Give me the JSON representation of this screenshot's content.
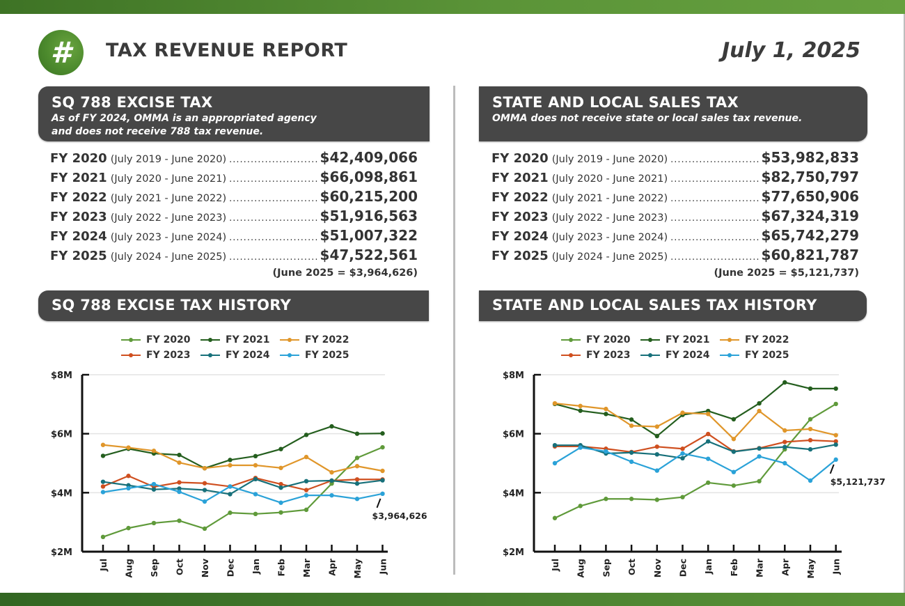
{
  "header": {
    "logo_glyph": "#",
    "logo_icon": "hash-icon",
    "title": "TAX REVENUE REPORT",
    "date": "July 1, 2025"
  },
  "colors": {
    "brand_green": "#4c8a2d",
    "header_box": "#474747",
    "series": {
      "FY 2020": "#5f9a3a",
      "FY 2021": "#245e1e",
      "FY 2022": "#e0962a",
      "FY 2023": "#cf4f1f",
      "FY 2024": "#17707a",
      "FY 2025": "#2aa2d8"
    }
  },
  "excise": {
    "title": "SQ 788 EXCISE TAX",
    "subtitle_line1": "As of FY 2024, OMMA is an appropriated agency",
    "subtitle_line2": "and does not receive 788 tax revenue.",
    "rows": [
      {
        "fy": "FY 2020",
        "period": "(July 2019 - June 2020)",
        "amount": "$42,409,066"
      },
      {
        "fy": "FY 2021",
        "period": "(July 2020 - June 2021)",
        "amount": "$66,098,861"
      },
      {
        "fy": "FY 2022",
        "period": "(July 2021 - June 2022)",
        "amount": "$60,215,200"
      },
      {
        "fy": "FY 2023",
        "period": "(July 2022 - June 2023)",
        "amount": "$51,916,563"
      },
      {
        "fy": "FY 2024",
        "period": "(July 2023 - June 2024)",
        "amount": "$51,007,322"
      },
      {
        "fy": "FY 2025",
        "period": "(July 2024 - June 2025)",
        "amount": "$47,522,561"
      }
    ],
    "june_note": "(June 2025 = $3,964,626)",
    "history_title": "SQ 788 EXCISE TAX HISTORY"
  },
  "sales": {
    "title": "STATE AND LOCAL SALES TAX",
    "subtitle_line1": "OMMA does not receive state or local sales tax revenue.",
    "rows": [
      {
        "fy": "FY 2020",
        "period": "(July 2019 - June 2020)",
        "amount": "$53,982,833"
      },
      {
        "fy": "FY 2021",
        "period": "(July 2020 - June 2021)",
        "amount": "$82,750,797"
      },
      {
        "fy": "FY 2022",
        "period": "(July 2021 - June 2022)",
        "amount": "$77,650,906"
      },
      {
        "fy": "FY 2023",
        "period": "(July 2022 - June 2023)",
        "amount": "$67,324,319"
      },
      {
        "fy": "FY 2024",
        "period": "(July 2023 - June 2024)",
        "amount": "$65,742,279"
      },
      {
        "fy": "FY 2025",
        "period": "(July 2024 - June 2025)",
        "amount": "$60,821,787"
      }
    ],
    "june_note": "(June 2025 = $5,121,737)",
    "history_title": "STATE AND LOCAL SALES TAX HISTORY"
  },
  "chart_data": [
    {
      "type": "line",
      "title": "SQ 788 EXCISE TAX HISTORY",
      "xlabel": "",
      "ylabel": "",
      "ylim": [
        2,
        8
      ],
      "y_unit": "millions USD",
      "yticks": [
        2,
        4,
        6,
        8
      ],
      "ytick_labels": [
        "$2M",
        "$4M",
        "$6M",
        "$8M"
      ],
      "grid": true,
      "legend_position": "top-center",
      "categories": [
        "Jul",
        "Aug",
        "Sep",
        "Oct",
        "Nov",
        "Dec",
        "Jan",
        "Feb",
        "Mar",
        "Apr",
        "May",
        "Jun"
      ],
      "series": [
        {
          "name": "FY 2020",
          "values": [
            2.5,
            2.8,
            2.97,
            3.05,
            2.78,
            3.32,
            3.28,
            3.33,
            3.42,
            4.31,
            5.18,
            5.54
          ]
        },
        {
          "name": "FY 2021",
          "values": [
            5.25,
            5.49,
            5.33,
            5.28,
            4.83,
            5.11,
            5.24,
            5.48,
            5.96,
            6.25,
            6.0,
            6.01
          ]
        },
        {
          "name": "FY 2022",
          "values": [
            5.62,
            5.53,
            5.42,
            5.02,
            4.83,
            4.93,
            4.93,
            4.84,
            5.21,
            4.69,
            4.9,
            4.74
          ]
        },
        {
          "name": "FY 2023",
          "values": [
            4.21,
            4.57,
            4.2,
            4.35,
            4.32,
            4.21,
            4.5,
            4.29,
            4.09,
            4.41,
            4.45,
            4.45
          ]
        },
        {
          "name": "FY 2024",
          "values": [
            4.37,
            4.25,
            4.11,
            4.14,
            4.09,
            3.95,
            4.46,
            4.17,
            4.39,
            4.41,
            4.31,
            4.42
          ]
        },
        {
          "name": "FY 2025",
          "values": [
            4.02,
            4.15,
            4.29,
            4.03,
            3.7,
            4.21,
            3.95,
            3.66,
            3.91,
            3.91,
            3.79,
            3.964626
          ]
        }
      ],
      "annotation": {
        "series": "FY 2025",
        "category": "Jun",
        "text": "$3,964,626"
      }
    },
    {
      "type": "line",
      "title": "STATE AND LOCAL SALES TAX HISTORY",
      "xlabel": "",
      "ylabel": "",
      "ylim": [
        2,
        8
      ],
      "y_unit": "millions USD",
      "yticks": [
        2,
        4,
        6,
        8
      ],
      "ytick_labels": [
        "$2M",
        "$4M",
        "$6M",
        "$8M"
      ],
      "grid": true,
      "legend_position": "top-center",
      "categories": [
        "Jul",
        "Aug",
        "Sep",
        "Oct",
        "Nov",
        "Dec",
        "Jan",
        "Feb",
        "Mar",
        "Apr",
        "May",
        "Jun"
      ],
      "series": [
        {
          "name": "FY 2020",
          "values": [
            3.14,
            3.55,
            3.79,
            3.79,
            3.76,
            3.85,
            4.34,
            4.24,
            4.39,
            5.47,
            6.49,
            7.01
          ]
        },
        {
          "name": "FY 2021",
          "values": [
            7.01,
            6.78,
            6.67,
            6.48,
            5.92,
            6.64,
            6.77,
            6.49,
            7.03,
            7.74,
            7.53,
            7.53
          ]
        },
        {
          "name": "FY 2022",
          "values": [
            7.03,
            6.94,
            6.84,
            6.27,
            6.24,
            6.71,
            6.67,
            5.82,
            6.77,
            6.11,
            6.16,
            5.95
          ]
        },
        {
          "name": "FY 2023",
          "values": [
            5.57,
            5.57,
            5.49,
            5.38,
            5.56,
            5.49,
            5.99,
            5.4,
            5.51,
            5.72,
            5.78,
            5.74
          ]
        },
        {
          "name": "FY 2024",
          "values": [
            5.61,
            5.61,
            5.33,
            5.36,
            5.3,
            5.17,
            5.74,
            5.39,
            5.5,
            5.55,
            5.47,
            5.63
          ]
        },
        {
          "name": "FY 2025",
          "values": [
            5.0,
            5.53,
            5.4,
            5.05,
            4.75,
            5.33,
            5.15,
            4.7,
            5.23,
            5.0,
            4.41,
            5.121737
          ]
        }
      ],
      "annotation": {
        "series": "FY 2025",
        "category": "Jun",
        "text": "$5,121,737"
      }
    }
  ]
}
